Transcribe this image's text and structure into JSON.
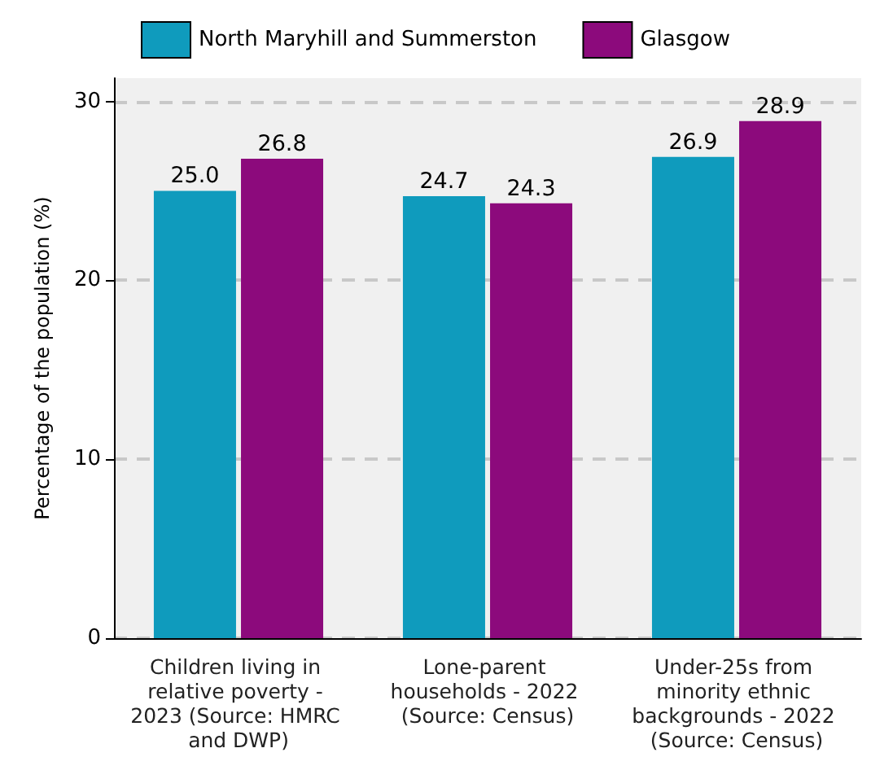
{
  "chart_data": {
    "type": "bar",
    "ylabel": "Percentage of the population (%)",
    "categories": [
      "Children living in relative poverty - 2023 (Source: HMRC and DWP)",
      "Lone-parent households - 2022 (Source: Census)",
      "Under-25s from minority ethnic backgrounds - 2022 (Source: Census)"
    ],
    "series": [
      {
        "name": "North Maryhill and Summerston",
        "color": "#0f9bbd",
        "values": [
          25.0,
          24.7,
          26.9
        ],
        "value_labels": [
          "25.0",
          "24.7",
          "26.9"
        ]
      },
      {
        "name": "Glasgow",
        "color": "#8c0a7c",
        "values": [
          26.8,
          24.3,
          28.9
        ],
        "value_labels": [
          "26.8",
          "24.3",
          "28.9"
        ]
      }
    ],
    "ylim": [
      0,
      31.3
    ],
    "yticks": [
      0,
      10,
      20,
      30
    ],
    "grid": "y",
    "legend": "top"
  }
}
